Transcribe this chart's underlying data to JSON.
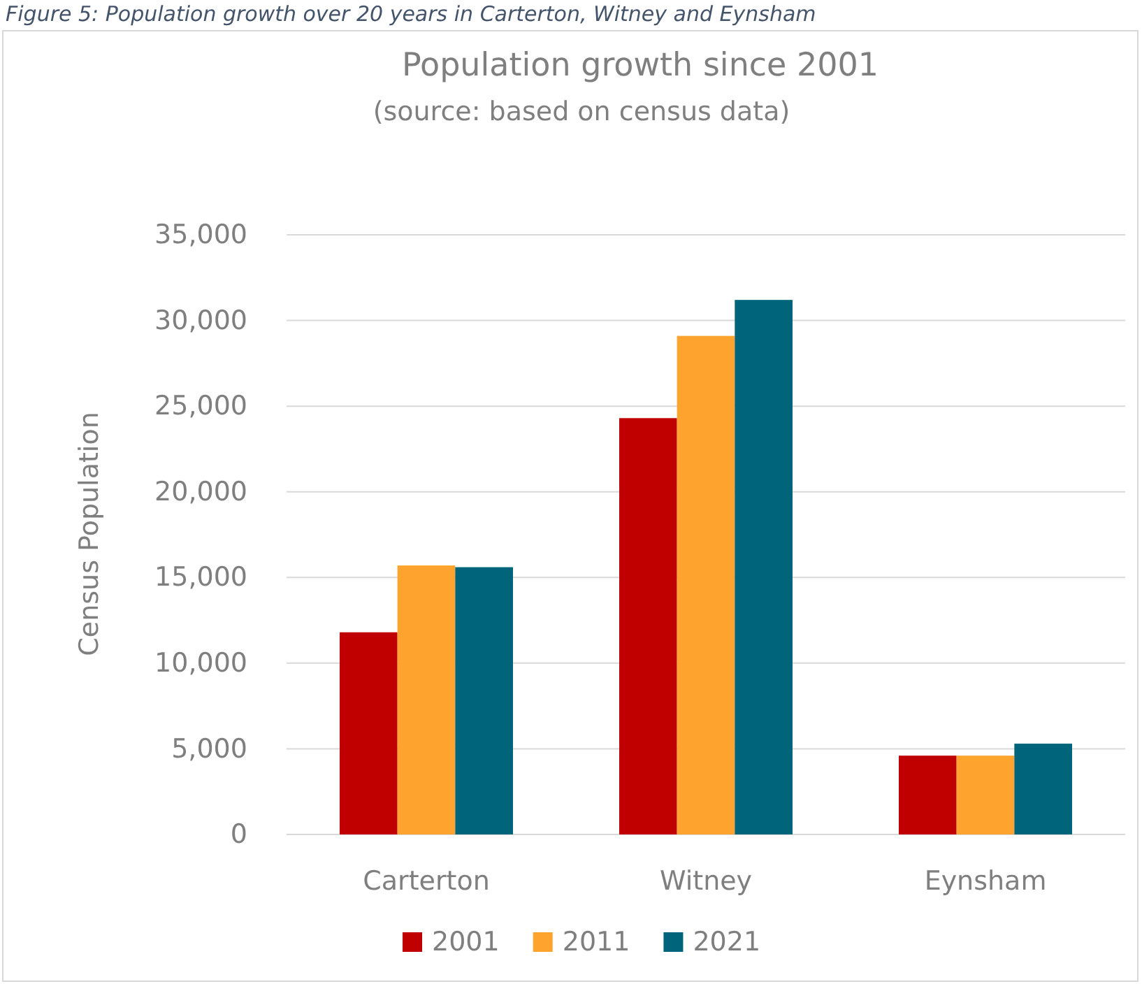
{
  "chart_data": {
    "type": "bar",
    "title": "Population growth since 2001",
    "subtitle": "(source: based on census data)",
    "ylabel": "Census Population",
    "annotations": [
      "Figure 5: Population growth over 20 years in Carterton, Witney and Eynsham"
    ],
    "categories": [
      "Carterton",
      "Witney",
      "Eynsham"
    ],
    "series": [
      {
        "name": "2001",
        "color": "#c00000",
        "values": [
          11800,
          24300,
          4600
        ]
      },
      {
        "name": "2011",
        "color": "#ffa32f",
        "values": [
          15700,
          29100,
          4600
        ]
      },
      {
        "name": "2021",
        "color": "#00657a",
        "values": [
          15600,
          31200,
          5300
        ]
      }
    ],
    "ylim": [
      0,
      35000
    ],
    "yticks": [
      {
        "value": 0,
        "label": "0"
      },
      {
        "value": 5000,
        "label": "5,000"
      },
      {
        "value": 10000,
        "label": "10,000"
      },
      {
        "value": 15000,
        "label": "15,000"
      },
      {
        "value": 20000,
        "label": "20,000"
      },
      {
        "value": 25000,
        "label": "25,000"
      },
      {
        "value": 30000,
        "label": "30,000"
      },
      {
        "value": 35000,
        "label": "35,000"
      }
    ],
    "grid": "y",
    "legend": "bottom"
  }
}
